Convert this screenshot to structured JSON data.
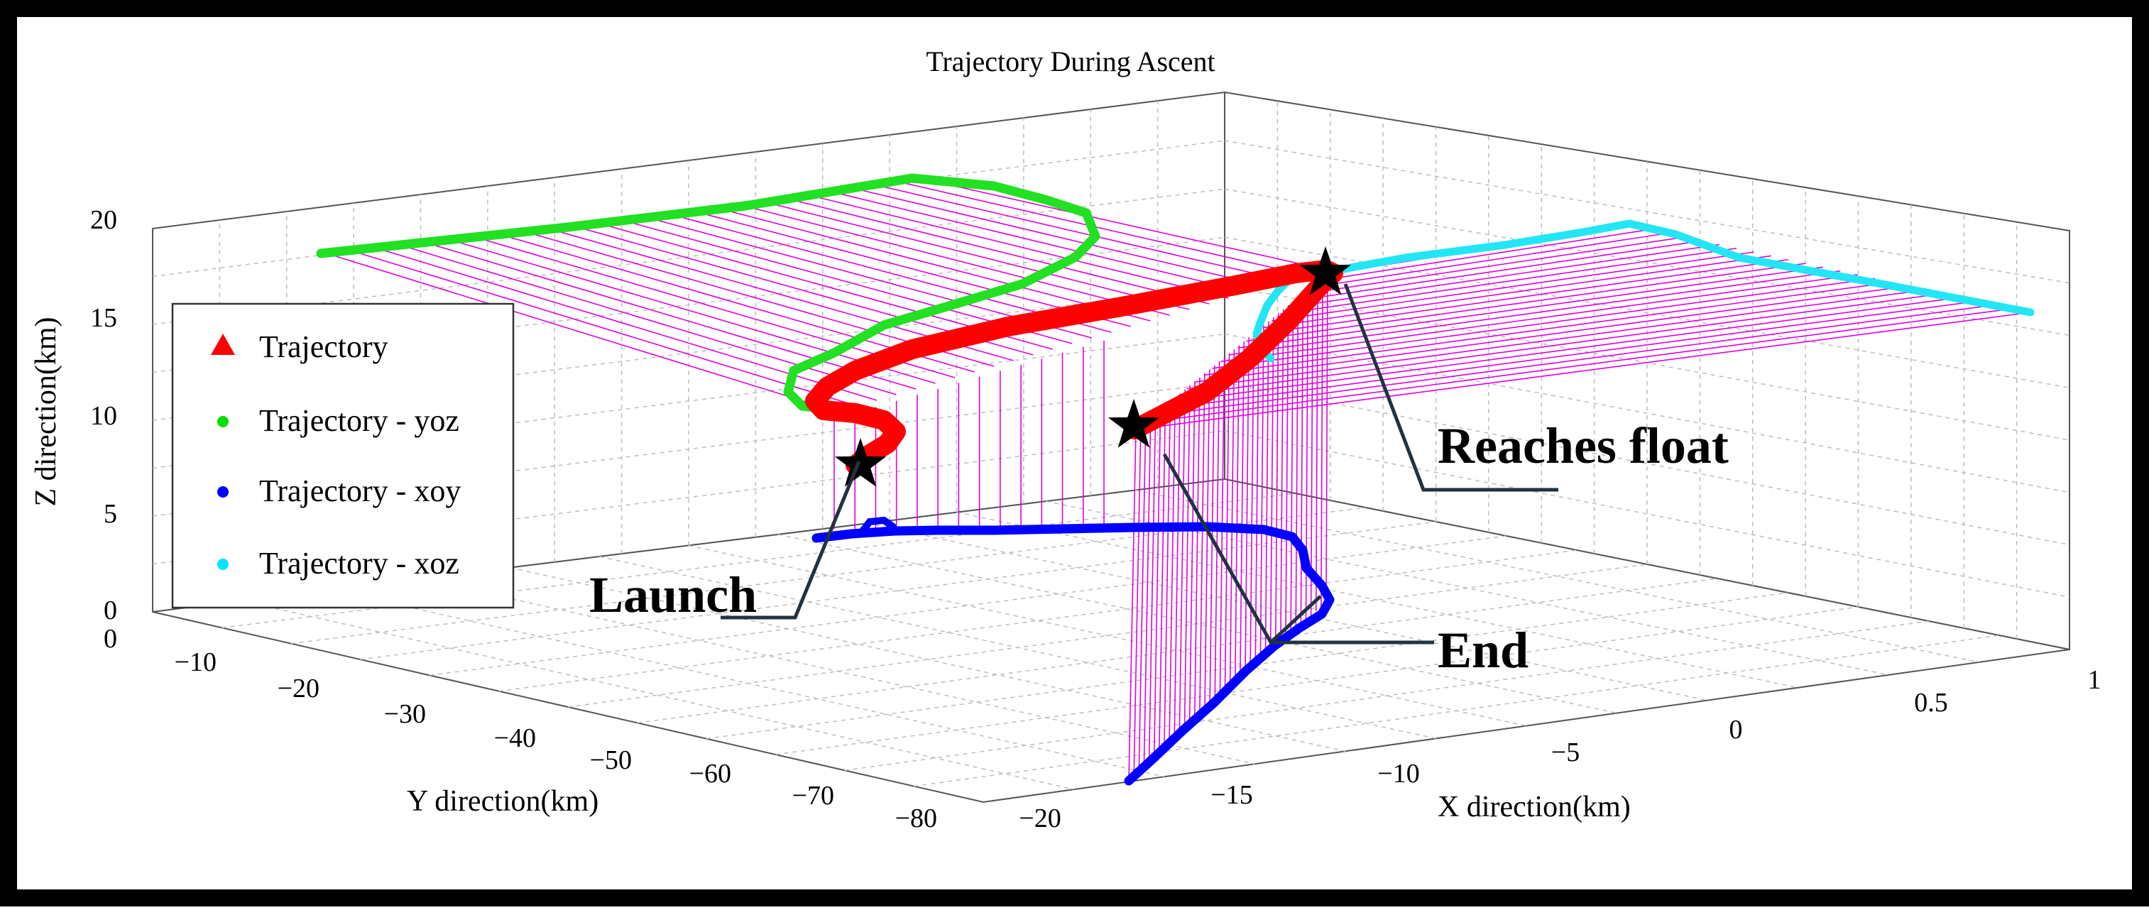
{
  "chart_data": {
    "type": "line",
    "title": "Trajectory During Ascent",
    "xlabel": "X direction(km)",
    "ylabel": "Y direction(km)",
    "zlabel": "Z direction(km)",
    "x_ticks": [
      "−20",
      "−15",
      "−10",
      "−5",
      "0",
      "0.5",
      "1"
    ],
    "y_ticks": [
      "0",
      "−10",
      "−20",
      "−30",
      "−40",
      "−50",
      "−60",
      "−70",
      "−80"
    ],
    "z_ticks": [
      "0",
      "5",
      "10",
      "15",
      "20"
    ],
    "grid": true,
    "legend_position": "left",
    "legend": [
      {
        "label": "Trajectory",
        "marker": "triangle",
        "color": "#ff0000"
      },
      {
        "label": "Trajectory - yoz",
        "marker": "dot",
        "color": "#00e000"
      },
      {
        "label": "Trajectory - xoy",
        "marker": "dot",
        "color": "#0000ff"
      },
      {
        "label": "Trajectory - xoz",
        "marker": "dot",
        "color": "#00e5ff"
      }
    ],
    "annotations": [
      {
        "label": "Launch"
      },
      {
        "label": "Reaches float"
      },
      {
        "label": "End"
      }
    ],
    "colors": {
      "trajectory": "#ff0000",
      "yoz": "#22e022",
      "xoy": "#0000ff",
      "xoz": "#22e6f5",
      "projection_lines": "#e000e0",
      "annotation_lines": "#1f3340",
      "grid": "#bdbdbd"
    }
  }
}
